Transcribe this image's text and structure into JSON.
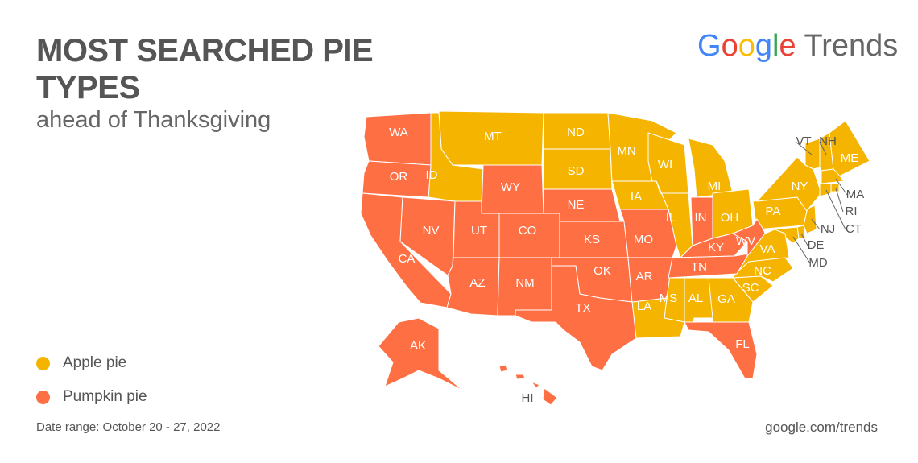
{
  "header": {
    "title": "MOST SEARCHED PIE TYPES",
    "subtitle": "ahead of Thanksgiving"
  },
  "logo": {
    "brand": "Google",
    "product": "Trends"
  },
  "legend": [
    {
      "label": "Apple pie",
      "color": "#f4b400",
      "states": [
        "MT",
        "ID",
        "ND",
        "SD",
        "MN",
        "WI",
        "IA",
        "IL",
        "MI",
        "OH",
        "PA",
        "NY",
        "VT",
        "NH",
        "ME",
        "MA",
        "RI",
        "CT",
        "NJ",
        "DE",
        "MD",
        "VA",
        "NC",
        "SC",
        "GA",
        "AL",
        "MS",
        "LA"
      ]
    },
    {
      "label": "Pumpkin pie",
      "color": "#fe7043",
      "states": [
        "WA",
        "OR",
        "CA",
        "NV",
        "UT",
        "AZ",
        "NM",
        "CO",
        "WY",
        "NE",
        "KS",
        "OK",
        "TX",
        "MO",
        "AR",
        "IN",
        "KY",
        "TN",
        "WV",
        "FL",
        "AK",
        "HI"
      ]
    }
  ],
  "footer": {
    "date_range": "Date range: October 20 - 27, 2022",
    "source": "google.com/trends"
  }
}
